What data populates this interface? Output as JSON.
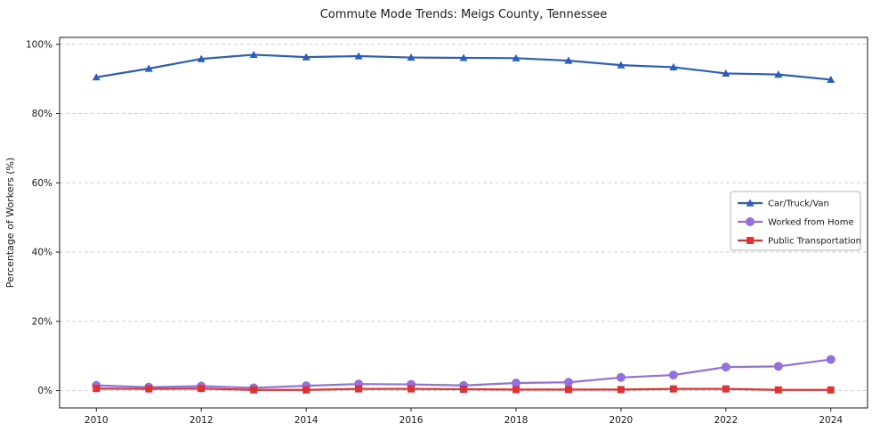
{
  "chart_data": {
    "type": "line",
    "title": "Commute Mode Trends: Meigs County, Tennessee",
    "xlabel": "",
    "ylabel": "Percentage of Workers (%)",
    "x": [
      2010,
      2011,
      2012,
      2013,
      2014,
      2015,
      2016,
      2017,
      2018,
      2019,
      2020,
      2021,
      2022,
      2023,
      2024
    ],
    "xticks": [
      2010,
      2012,
      2014,
      2016,
      2018,
      2020,
      2022,
      2024
    ],
    "yticks": [
      0,
      20,
      40,
      60,
      80,
      100
    ],
    "ytick_suffix": "%",
    "xlim": [
      2009.3,
      2024.7
    ],
    "ylim": [
      -5,
      102
    ],
    "grid": "horizontal-dashed",
    "grid_color": "#cfcfcf",
    "legend_position": "center-right",
    "series": [
      {
        "name": "Car/Truck/Van",
        "marker": "triangle",
        "color": "#2b5cbf",
        "values": [
          90.5,
          93.0,
          95.8,
          97.0,
          96.3,
          96.6,
          96.2,
          96.1,
          96.0,
          95.3,
          94.0,
          93.4,
          91.6,
          91.3,
          89.8
        ]
      },
      {
        "name": "Worked from Home",
        "marker": "circle",
        "color": "#9370db",
        "values": [
          1.5,
          1.0,
          1.3,
          0.8,
          1.4,
          1.9,
          1.8,
          1.5,
          2.2,
          2.4,
          3.8,
          4.5,
          6.8,
          7.0,
          9.0
        ]
      },
      {
        "name": "Public Transportation",
        "marker": "square",
        "color": "#dd3333",
        "values": [
          0.6,
          0.5,
          0.6,
          0.2,
          0.2,
          0.5,
          0.5,
          0.4,
          0.3,
          0.3,
          0.3,
          0.5,
          0.5,
          0.2,
          0.2
        ]
      }
    ]
  }
}
